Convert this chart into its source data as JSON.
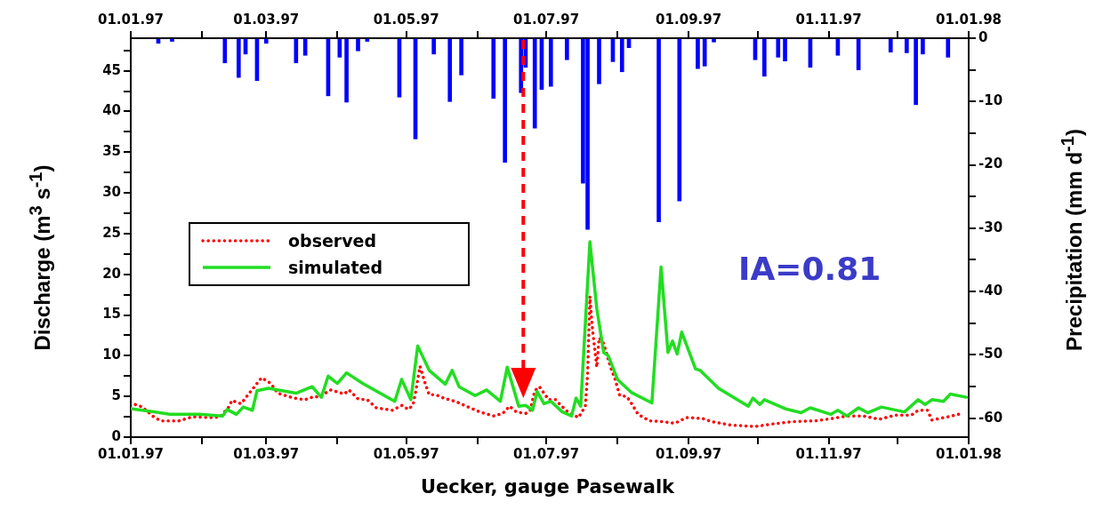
{
  "chart_data": {
    "type": "line",
    "xlabel": "Uecker, gauge Pasewalk",
    "ylabel": "Discharge (m$^{3}$ s$^{-1}$)",
    "y2label": "Precipitation (mm d$^{-1}$)",
    "annotations": [
      "IA=0.81"
    ],
    "legend": "left",
    "xlim": [
      "1997-01-01",
      "1998-01-01"
    ],
    "xticks": [
      {
        "value": "1997-01-01",
        "label": "01.01.97"
      },
      {
        "value": "1997-02-01",
        "label": null
      },
      {
        "value": "1997-03-01",
        "label": "01.03.97"
      },
      {
        "value": "1997-04-01",
        "label": null
      },
      {
        "value": "1997-05-01",
        "label": "01.05.97"
      },
      {
        "value": "1997-06-01",
        "label": null
      },
      {
        "value": "1997-07-01",
        "label": "01.07.97"
      },
      {
        "value": "1997-08-01",
        "label": null
      },
      {
        "value": "1997-09-01",
        "label": "01.09.97"
      },
      {
        "value": "1997-10-01",
        "label": null
      },
      {
        "value": "1997-11-01",
        "label": "01.11.97"
      },
      {
        "value": "1997-12-01",
        "label": null
      },
      {
        "value": "1998-01-01",
        "label": "01.01.98"
      }
    ],
    "x2lim": [
      "1997-01-01",
      "1998-01-01"
    ],
    "x2ticks": [
      {
        "value": "1997-01-01",
        "label": "01.01.97"
      },
      {
        "value": "1997-02-01",
        "label": null
      },
      {
        "value": "1997-03-01",
        "label": "01.03.97"
      },
      {
        "value": "1997-04-01",
        "label": null
      },
      {
        "value": "1997-05-01",
        "label": "01.05.97"
      },
      {
        "value": "1997-06-01",
        "label": null
      },
      {
        "value": "1997-07-01",
        "label": "01.07.97"
      },
      {
        "value": "1997-08-01",
        "label": null
      },
      {
        "value": "1997-09-01",
        "label": "01.09.97"
      },
      {
        "value": "1997-10-01",
        "label": null
      },
      {
        "value": "1997-11-01",
        "label": "01.11.97"
      },
      {
        "value": "1997-12-01",
        "label": null
      },
      {
        "value": "1998-01-01",
        "label": "01.01.98"
      }
    ],
    "ylim": [
      0,
      49
    ],
    "yticks": [
      0,
      {
        "value": 2.5,
        "label": null
      },
      5,
      {
        "value": 7.5,
        "label": null
      },
      10,
      {
        "value": 12.5,
        "label": null
      },
      15,
      {
        "value": 17.5,
        "label": null
      },
      20,
      {
        "value": 22.5,
        "label": null
      },
      25,
      {
        "value": 27.5,
        "label": null
      },
      30,
      {
        "value": 32.5,
        "label": null
      },
      35,
      {
        "value": 37.5,
        "label": null
      },
      40,
      {
        "value": 42.5,
        "label": null
      },
      45,
      {
        "value": 47.5,
        "label": null
      }
    ],
    "y2lim": [
      -63,
      0
    ],
    "y2ticks": [
      0,
      {
        "value": -5,
        "label": null
      },
      -10,
      {
        "value": -15,
        "label": null
      },
      -20,
      {
        "value": -25,
        "label": null
      },
      -30,
      {
        "value": -35,
        "label": null
      },
      -40,
      {
        "value": -45,
        "label": null
      },
      -50,
      {
        "value": -55,
        "label": null
      },
      -60
    ],
    "ref_lines": [
      {
        "axis": "x",
        "value": "1997-06-21",
        "color": "#ff0000",
        "line_style": "dashed"
      }
    ],
    "series": [
      {
        "type": "bar",
        "axis": "y2",
        "color": "#0000ff",
        "x": [
          "1997-01-13",
          "1997-01-19",
          "1997-02-11",
          "1997-02-17",
          "1997-02-20",
          "1997-02-25",
          "1997-03-01",
          "1997-03-14",
          "1997-03-18",
          "1997-03-28",
          "1997-04-02",
          "1997-04-05",
          "1997-04-10",
          "1997-04-14",
          "1997-04-28",
          "1997-05-05",
          "1997-05-13",
          "1997-05-20",
          "1997-05-25",
          "1997-06-08",
          "1997-06-13",
          "1997-06-20",
          "1997-06-22",
          "1997-06-26",
          "1997-06-29",
          "1997-07-03",
          "1997-07-10",
          "1997-07-17",
          "1997-07-19",
          "1997-07-24",
          "1997-07-30",
          "1997-08-03",
          "1997-08-06",
          "1997-08-19",
          "1997-08-28",
          "1997-09-05",
          "1997-09-08",
          "1997-09-12",
          "1997-09-30",
          "1997-10-04",
          "1997-10-10",
          "1997-10-13",
          "1997-10-24",
          "1997-11-05",
          "1997-11-14",
          "1997-11-28",
          "1997-12-05",
          "1997-12-09",
          "1997-12-12",
          "1997-12-23"
        ],
        "values": [
          -0.8,
          -0.5,
          -3.9,
          -6.2,
          -2.5,
          -6.7,
          -0.8,
          -3.9,
          -2.7,
          -9.1,
          -3.0,
          -10.1,
          -2.0,
          -0.5,
          -9.3,
          -15.9,
          -2.5,
          -10.0,
          -5.8,
          -9.5,
          -19.6,
          -8.6,
          -4.6,
          -14.2,
          -8.1,
          -7.6,
          -3.4,
          -22.9,
          -30.2,
          -7.2,
          -3.7,
          -5.3,
          -1.5,
          -29.0,
          -25.7,
          -4.8,
          -4.4,
          -0.6,
          -3.4,
          -6.0,
          -3.0,
          -3.6,
          -4.6,
          -2.7,
          -5.0,
          -2.2,
          -2.3,
          -10.5,
          -2.5,
          -3.0
        ]
      },
      {
        "name": "observed",
        "color": "#ff0000",
        "line_style": "dotted",
        "x": [
          "1997-01-03",
          "1997-01-06",
          "1997-01-11",
          "1997-01-14",
          "1997-01-22",
          "1997-01-28",
          "1997-02-05",
          "1997-02-09",
          "1997-02-13",
          "1997-02-14",
          "1997-02-18",
          "1997-02-20",
          "1997-02-25",
          "1997-02-27",
          "1997-03-03",
          "1997-03-06",
          "1997-03-13",
          "1997-03-18",
          "1997-03-22",
          "1997-03-24",
          "1997-03-29",
          "1997-04-04",
          "1997-04-06",
          "1997-04-10",
          "1997-04-14",
          "1997-04-18",
          "1997-04-25",
          "1997-04-29",
          "1997-05-02",
          "1997-05-04",
          "1997-05-05",
          "1997-05-07",
          "1997-05-09",
          "1997-05-11",
          "1997-05-14",
          "1997-05-18",
          "1997-05-20",
          "1997-05-24",
          "1997-05-28",
          "1997-06-02",
          "1997-06-08",
          "1997-06-12",
          "1997-06-15",
          "1997-06-18",
          "1997-06-22",
          "1997-06-24",
          "1997-06-26",
          "1997-06-28",
          "1997-07-02",
          "1997-07-05",
          "1997-07-07",
          "1997-07-10",
          "1997-07-15",
          "1997-07-18",
          "1997-07-19",
          "1997-07-20",
          "1997-07-21",
          "1997-07-23",
          "1997-07-24",
          "1997-07-26",
          "1997-07-29",
          "1997-07-31",
          "1997-08-02",
          "1997-08-05",
          "1997-08-07",
          "1997-08-10",
          "1997-08-15",
          "1997-08-21",
          "1997-08-26",
          "1997-08-31",
          "1997-09-07",
          "1997-09-11",
          "1997-09-19",
          "1997-09-30",
          "1997-10-07",
          "1997-10-16",
          "1997-10-26",
          "1997-11-03",
          "1997-11-09",
          "1997-11-16",
          "1997-11-23",
          "1997-11-30",
          "1997-12-07",
          "1997-12-10",
          "1997-12-14",
          "1997-12-16",
          "1997-12-23",
          "1997-12-29"
        ],
        "values": [
          4.0,
          3.7,
          2.5,
          2.0,
          2.0,
          2.5,
          2.4,
          2.5,
          3.8,
          4.5,
          4.1,
          4.8,
          6.6,
          7.3,
          6.6,
          5.4,
          4.8,
          4.6,
          5.0,
          4.9,
          5.8,
          5.3,
          5.8,
          4.7,
          4.6,
          3.6,
          3.3,
          3.9,
          3.4,
          4.0,
          5.4,
          8.7,
          6.8,
          5.2,
          5.2,
          4.7,
          4.6,
          4.2,
          3.7,
          3.1,
          2.6,
          2.9,
          3.8,
          3.1,
          2.9,
          3.3,
          5.7,
          6.2,
          4.6,
          4.6,
          4.0,
          3.2,
          2.4,
          3.8,
          7.8,
          17.3,
          13.6,
          8.6,
          12.2,
          11.5,
          8.6,
          7.1,
          5.1,
          5.0,
          4.2,
          2.8,
          2.0,
          1.9,
          1.7,
          2.4,
          2.3,
          1.9,
          1.5,
          1.3,
          1.6,
          1.9,
          2.0,
          2.3,
          2.6,
          2.6,
          2.2,
          2.7,
          2.7,
          3.3,
          3.3,
          2.1,
          2.5,
          2.9
        ]
      },
      {
        "name": "simulated",
        "color": "#22dd22",
        "x": [
          "1997-01-01",
          "1997-01-11",
          "1997-01-18",
          "1997-01-31",
          "1997-02-10",
          "1997-02-12",
          "1997-02-16",
          "1997-02-19",
          "1997-02-23",
          "1997-02-25",
          "1997-03-02",
          "1997-03-14",
          "1997-03-21",
          "1997-03-25",
          "1997-03-28",
          "1997-04-01",
          "1997-04-05",
          "1997-04-12",
          "1997-04-26",
          "1997-04-29",
          "1997-05-03",
          "1997-05-06",
          "1997-05-11",
          "1997-05-18",
          "1997-05-21",
          "1997-05-24",
          "1997-05-31",
          "1997-06-05",
          "1997-06-11",
          "1997-06-14",
          "1997-06-19",
          "1997-06-22",
          "1997-06-25",
          "1997-06-27",
          "1997-06-30",
          "1997-07-03",
          "1997-07-08",
          "1997-07-12",
          "1997-07-14",
          "1997-07-16",
          "1997-07-20",
          "1997-07-23",
          "1997-07-26",
          "1997-07-28",
          "1997-08-01",
          "1997-08-07",
          "1997-08-16",
          "1997-08-20",
          "1997-08-23",
          "1997-08-25",
          "1997-08-27",
          "1997-08-29",
          "1997-09-04",
          "1997-09-06",
          "1997-09-14",
          "1997-09-27",
          "1997-09-29",
          "1997-10-02",
          "1997-10-04",
          "1997-10-13",
          "1997-10-20",
          "1997-10-24",
          "1997-11-02",
          "1997-11-05",
          "1997-11-09",
          "1997-11-14",
          "1997-11-18",
          "1997-11-24",
          "1997-12-04",
          "1997-12-10",
          "1997-12-13",
          "1997-12-16",
          "1997-12-21",
          "1997-12-24",
          "1997-12-31"
        ],
        "values": [
          3.5,
          3.1,
          2.8,
          2.8,
          2.6,
          3.4,
          2.8,
          3.7,
          3.3,
          5.7,
          6.0,
          5.4,
          6.2,
          4.9,
          7.5,
          6.6,
          7.9,
          6.6,
          4.4,
          7.1,
          4.6,
          11.2,
          8.2,
          6.5,
          8.2,
          6.2,
          5.1,
          5.8,
          4.4,
          8.6,
          3.8,
          3.9,
          3.3,
          5.6,
          4.1,
          4.4,
          3.1,
          2.6,
          4.8,
          3.8,
          24.0,
          15.8,
          10.4,
          10.0,
          7.1,
          5.5,
          4.2,
          20.9,
          10.4,
          11.8,
          10.2,
          12.9,
          8.4,
          8.2,
          6.0,
          3.8,
          4.8,
          4.0,
          4.6,
          3.5,
          3.0,
          3.6,
          2.8,
          3.3,
          2.6,
          3.6,
          3.0,
          3.7,
          3.1,
          4.6,
          4.0,
          4.6,
          4.4,
          5.3,
          4.9
        ]
      }
    ]
  }
}
